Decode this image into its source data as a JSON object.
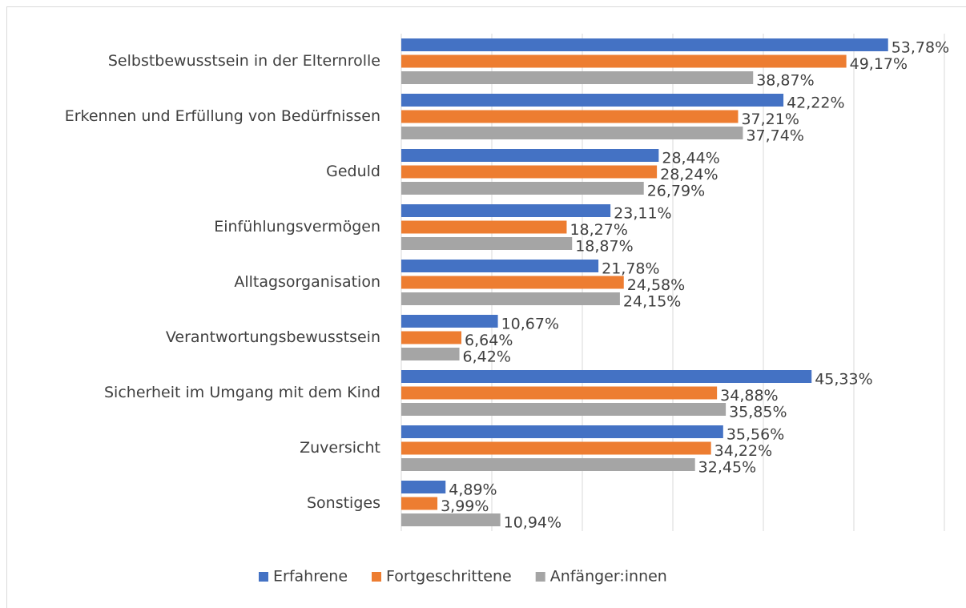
{
  "chart_data": {
    "type": "bar",
    "orientation": "horizontal",
    "categories": [
      "Selbstbewusstsein in der Elternrolle",
      "Erkennen und Erfüllung von Bedürfnissen",
      "Geduld",
      "Einfühlungsvermögen",
      "Alltagsorganisation",
      "Verantwortungsbewusstsein",
      "Sicherheit im Umgang mit dem Kind",
      "Zuversicht",
      "Sonstiges"
    ],
    "series": [
      {
        "name": "Erfahrene",
        "color": "#4472c4",
        "values": [
          53.78,
          42.22,
          28.44,
          23.11,
          21.78,
          10.67,
          45.33,
          35.56,
          4.89
        ],
        "value_labels": [
          "53,78%",
          "42,22%",
          "28,44%",
          "23,11%",
          "21,78%",
          "10,67%",
          "45,33%",
          "35,56%",
          "4,89%"
        ]
      },
      {
        "name": "Fortgeschrittene",
        "color": "#ed7d31",
        "values": [
          49.17,
          37.21,
          28.24,
          18.27,
          24.58,
          6.64,
          34.88,
          34.22,
          3.99
        ],
        "value_labels": [
          "49,17%",
          "37,21%",
          "28,24%",
          "18,27%",
          "24,58%",
          "6,64%",
          "34,88%",
          "34,22%",
          "3,99%"
        ]
      },
      {
        "name": "Anfänger:innen",
        "color": "#a5a5a5",
        "values": [
          38.87,
          37.74,
          26.79,
          18.87,
          24.15,
          6.42,
          35.85,
          32.45,
          10.94
        ],
        "value_labels": [
          "38,87%",
          "37,74%",
          "26,79%",
          "18,87%",
          "24,15%",
          "6,42%",
          "35,85%",
          "32,45%",
          "10,94%"
        ]
      }
    ],
    "xlim": [
      0,
      60
    ],
    "xticks": [
      0,
      10,
      20,
      30,
      40,
      50,
      60
    ],
    "grid": true,
    "legend": "bottom"
  }
}
